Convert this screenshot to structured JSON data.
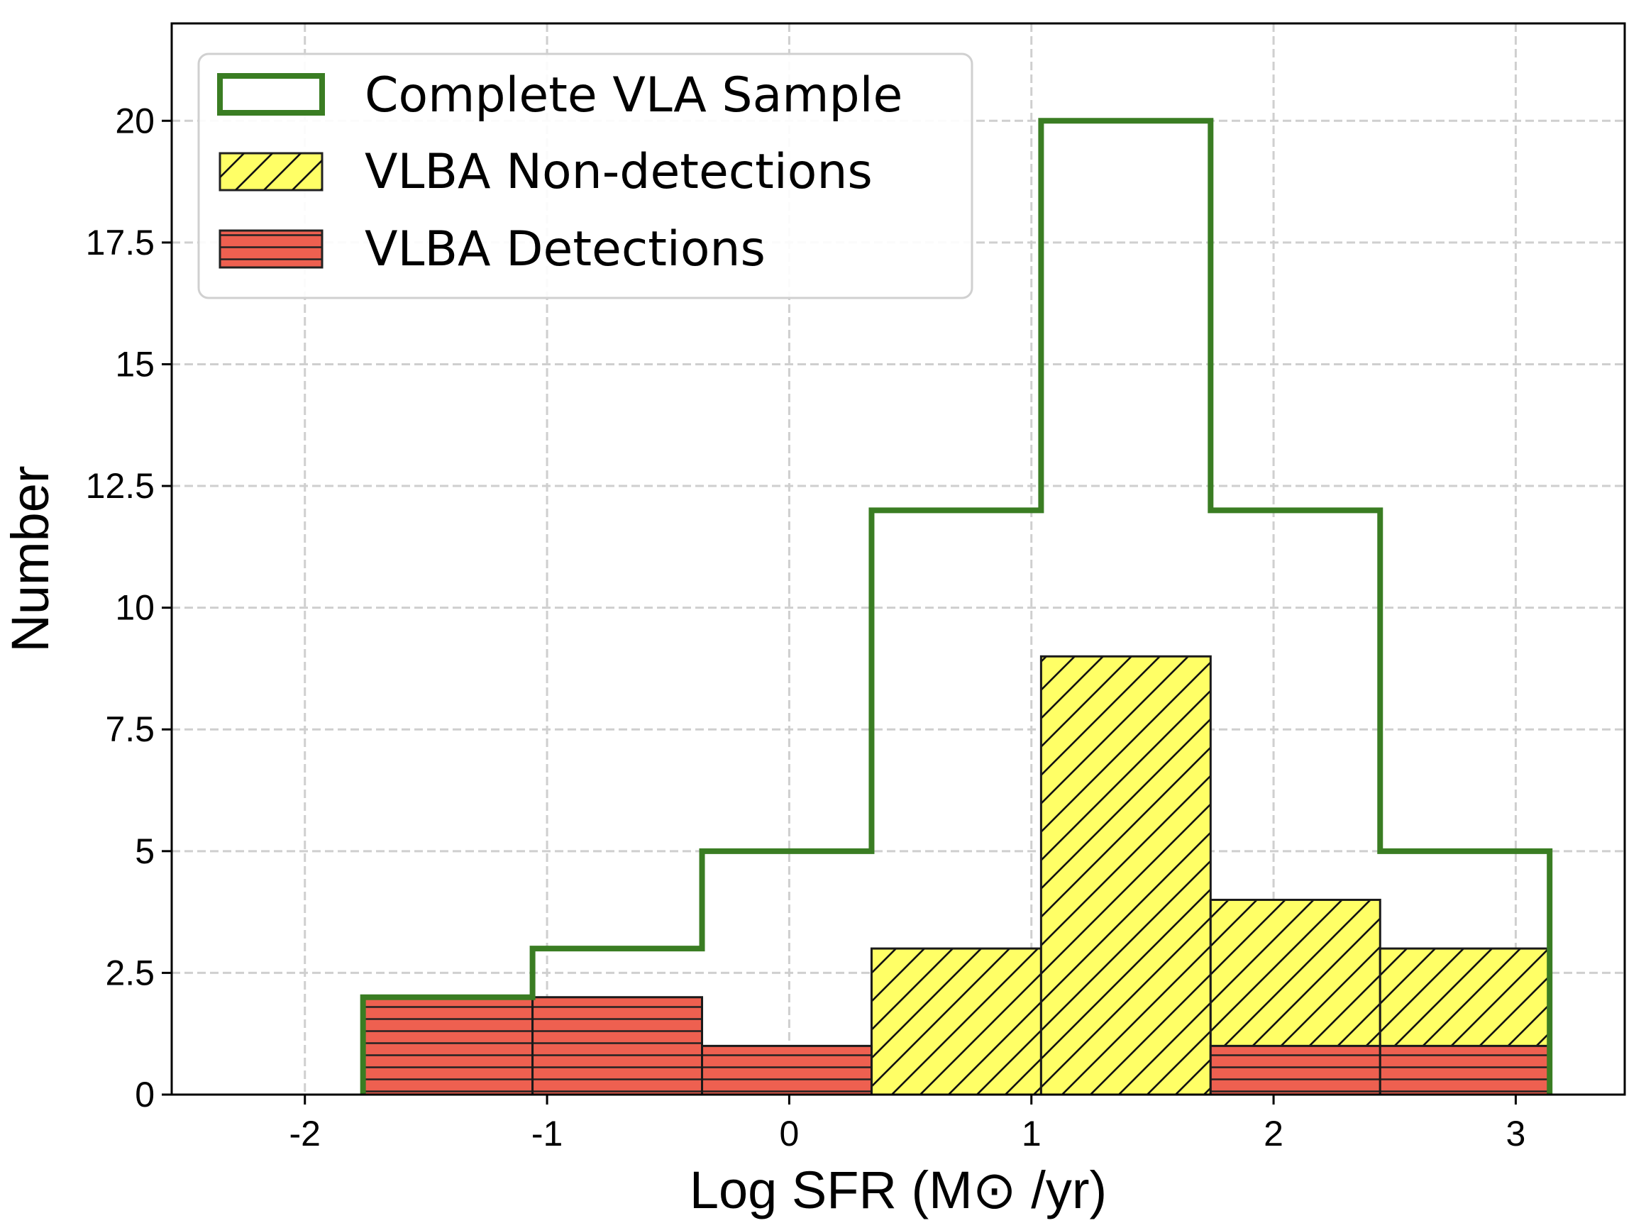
{
  "chart_data": {
    "type": "histogram",
    "title": "",
    "xlabel": "Log SFR (M⊙ /yr)",
    "ylabel": "Number",
    "xlim": [
      -2.55,
      3.45
    ],
    "ylim": [
      0,
      22
    ],
    "grid": true,
    "legend_position": "top-left",
    "bin_edges": [
      -1.76,
      -1.06,
      -0.36,
      0.34,
      1.04,
      1.74,
      2.44,
      3.14
    ],
    "x_ticks": [
      -2,
      -1,
      0,
      1,
      2,
      3
    ],
    "x_tick_labels": [
      "-2",
      "-1",
      "0",
      "1",
      "2",
      "3"
    ],
    "y_ticks": [
      0,
      2.5,
      5,
      7.5,
      10,
      12.5,
      15,
      17.5,
      20
    ],
    "y_tick_labels": [
      "0",
      "2.5",
      "5",
      "7.5",
      "10",
      "12.5",
      "15",
      "17.5",
      "20"
    ],
    "series": [
      {
        "name": "Complete VLA Sample",
        "style": "step",
        "color": "#3a7d23",
        "values": [
          2,
          3,
          5,
          12,
          20,
          12,
          5
        ]
      },
      {
        "name": "VLBA Non-detections",
        "style": "hatched-diagonal",
        "color": "#ffff66",
        "values": [
          0,
          0,
          0,
          3,
          9,
          4,
          3
        ]
      },
      {
        "name": "VLBA Detections",
        "style": "hatched-horizontal",
        "color": "#ee6050",
        "values": [
          2,
          2,
          1,
          0,
          0,
          1,
          1
        ]
      }
    ]
  }
}
